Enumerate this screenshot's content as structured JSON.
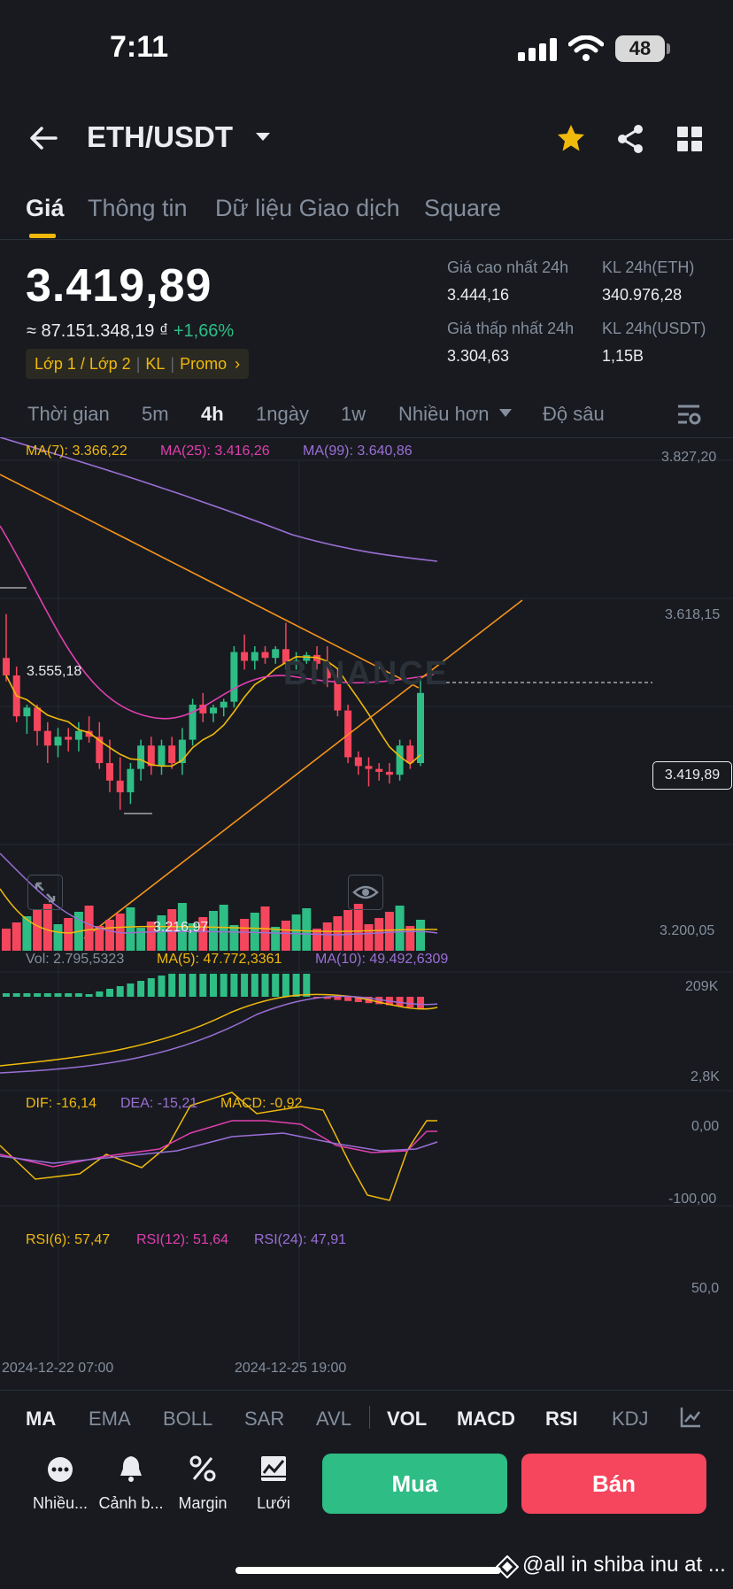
{
  "status_bar": {
    "time": "7:11",
    "battery": "48"
  },
  "header": {
    "pair": "ETH/USDT"
  },
  "tabs": [
    "Giá",
    "Thông tin",
    "Dữ liệu Giao dịch",
    "Square"
  ],
  "price": {
    "last": "3.419,89",
    "fiat": "≈ 87.151.348,19 ₫",
    "change": "+1,66%",
    "tags": [
      "Lớp 1 / Lớp 2",
      "KL",
      "Promo"
    ]
  },
  "stats": {
    "high_label": "Giá cao nhất 24h",
    "high": "3.444,16",
    "vol_eth_label": "KL 24h(ETH)",
    "vol_eth": "340.976,28",
    "low_label": "Giá thấp nhất 24h",
    "low": "3.304,63",
    "vol_usdt_label": "KL 24h(USDT)",
    "vol_usdt": "1,15B"
  },
  "intervals": [
    "Thời gian",
    "5m",
    "4h",
    "1ngày",
    "1w",
    "Nhiều hơn",
    "Độ sâu"
  ],
  "main_chart": {
    "ma7": "MA(7): 3.366,22",
    "ma25": "MA(25): 3.416,26",
    "ma99": "MA(99): 3.640,86",
    "y_top": "3.827,20",
    "y_mid": "3.618,15",
    "y_bottom": "3.200,05",
    "current": "3.419,89",
    "high_mark": "3.555,18",
    "low_mark": "3.216,97",
    "watermark": "BINANCE"
  },
  "volume_chart": {
    "vol": "Vol: 2.795,5323",
    "ma5": "MA(5): 47.772,3361",
    "ma10": "MA(10): 49.492,6309",
    "y_top": "209K",
    "y_bottom": "2,8K"
  },
  "macd_chart": {
    "dif": "DIF: -16,14",
    "dea": "DEA: -15,21",
    "macd": "MACD: -0,92",
    "y_top": "0,00",
    "y_bottom": "-100,00"
  },
  "rsi_chart": {
    "rsi6": "RSI(6): 57,47",
    "rsi12": "RSI(12): 51,64",
    "rsi24": "RSI(24): 47,91",
    "y_mid": "50,0"
  },
  "x_axis": [
    "2024-12-22 07:00",
    "2024-12-25 19:00"
  ],
  "indicators": [
    "MA",
    "EMA",
    "BOLL",
    "SAR",
    "AVL",
    "VOL",
    "MACD",
    "RSI",
    "KDJ"
  ],
  "bottom_actions": [
    "Nhiều...",
    "Cảnh b...",
    "Margin",
    "Lưới"
  ],
  "buy_label": "Mua",
  "sell_label": "Bán",
  "overlay_user": "@all in shiba inu at ...",
  "colors": {
    "up": "#2ebd85",
    "down": "#f6465d",
    "accent": "#f0b90b",
    "ma7": "#f0b90b",
    "ma25": "#e03fae",
    "ma99": "#9b6fd6"
  },
  "chart_data": {
    "type": "candlestick",
    "candles": [
      [
        3480,
        3555,
        3440,
        3450
      ],
      [
        3450,
        3465,
        3370,
        3380
      ],
      [
        3380,
        3400,
        3350,
        3395
      ],
      [
        3395,
        3400,
        3330,
        3355
      ],
      [
        3355,
        3370,
        3300,
        3330
      ],
      [
        3330,
        3360,
        3310,
        3345
      ],
      [
        3345,
        3360,
        3320,
        3340
      ],
      [
        3340,
        3370,
        3320,
        3355
      ],
      [
        3355,
        3380,
        3335,
        3345
      ],
      [
        3345,
        3370,
        3290,
        3300
      ],
      [
        3300,
        3340,
        3250,
        3270
      ],
      [
        3270,
        3310,
        3220,
        3250
      ],
      [
        3250,
        3300,
        3230,
        3290
      ],
      [
        3290,
        3340,
        3270,
        3330
      ],
      [
        3330,
        3345,
        3280,
        3295
      ],
      [
        3295,
        3340,
        3280,
        3330
      ],
      [
        3330,
        3345,
        3290,
        3300
      ],
      [
        3300,
        3360,
        3280,
        3340
      ],
      [
        3340,
        3410,
        3330,
        3400
      ],
      [
        3400,
        3420,
        3370,
        3385
      ],
      [
        3385,
        3400,
        3370,
        3395
      ],
      [
        3395,
        3410,
        3380,
        3405
      ],
      [
        3405,
        3500,
        3395,
        3490
      ],
      [
        3490,
        3520,
        3460,
        3475
      ],
      [
        3475,
        3500,
        3460,
        3490
      ],
      [
        3490,
        3500,
        3470,
        3480
      ],
      [
        3480,
        3500,
        3470,
        3495
      ],
      [
        3495,
        3540,
        3460,
        3470
      ],
      [
        3470,
        3490,
        3460,
        3475
      ],
      [
        3475,
        3490,
        3470,
        3485
      ],
      [
        3485,
        3500,
        3460,
        3470
      ],
      [
        3470,
        3500,
        3430,
        3445
      ],
      [
        3445,
        3460,
        3380,
        3390
      ],
      [
        3390,
        3400,
        3300,
        3310
      ],
      [
        3310,
        3320,
        3280,
        3295
      ],
      [
        3295,
        3310,
        3260,
        3290
      ],
      [
        3290,
        3300,
        3270,
        3285
      ],
      [
        3285,
        3300,
        3265,
        3280
      ],
      [
        3280,
        3340,
        3270,
        3330
      ],
      [
        3330,
        3340,
        3290,
        3300
      ],
      [
        3300,
        3444,
        3295,
        3420
      ]
    ]
  }
}
